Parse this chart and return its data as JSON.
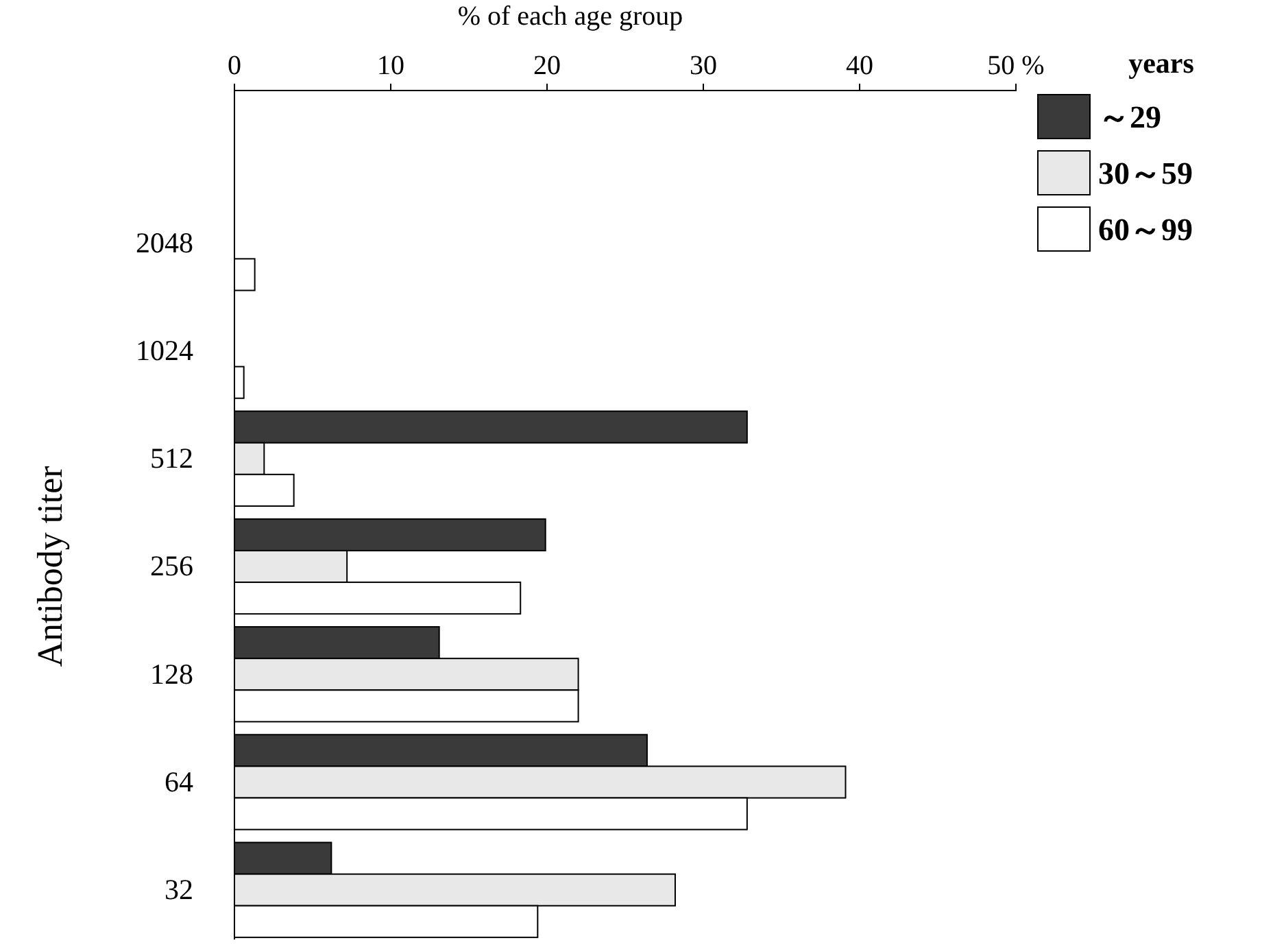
{
  "chart_data": {
    "type": "bar",
    "orientation": "horizontal",
    "xlabel": "% of each age group",
    "ylabel": "Antibody titer",
    "legend_title": "years",
    "legend": "top right",
    "grid": false,
    "categories": [
      "2048",
      "1024",
      "512",
      "256",
      "128",
      "64",
      "32"
    ],
    "xlim": [
      0,
      50
    ],
    "xticks": [
      0,
      10,
      20,
      30,
      40,
      {
        "value": 50,
        "label": "50 %"
      }
    ],
    "series": [
      {
        "name": "～29",
        "color": "#3a3a3a",
        "values": [
          0,
          0,
          32.8,
          19.9,
          13.1,
          26.4,
          6.2
        ]
      },
      {
        "name": "30～59",
        "color": "#e8e8e8",
        "values": [
          0,
          0,
          1.9,
          7.2,
          22.0,
          39.1,
          28.2
        ]
      },
      {
        "name": "60～99",
        "color": "#ffffff",
        "values": [
          1.3,
          0.6,
          3.8,
          18.3,
          22.0,
          32.8,
          19.4
        ]
      }
    ]
  }
}
